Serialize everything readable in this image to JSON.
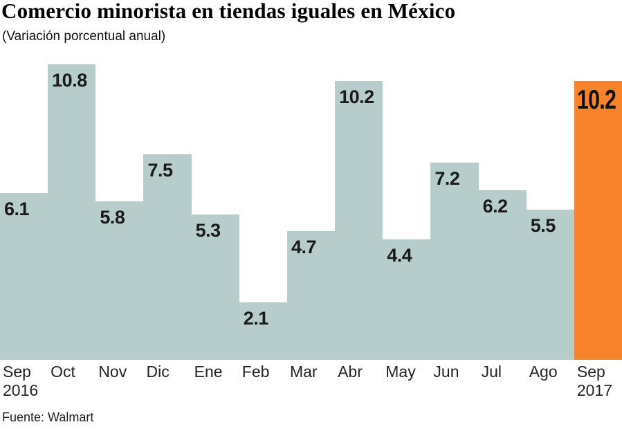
{
  "header": {
    "title": "Comercio minorista en tiendas iguales en México",
    "subtitle": "(Variación porcentual anual)"
  },
  "source": "Fuente: Walmart",
  "colors": {
    "bar": "#b6cdcc",
    "highlight": "#f7832b",
    "value_label": "#1a1a1a",
    "axis_text": "#242424"
  },
  "chart_data": {
    "type": "bar",
    "title": "Comercio minorista en tiendas iguales en México",
    "subtitle": "(Variación porcentual anual)",
    "categories": [
      "Sep\n2016",
      "Oct",
      "Nov",
      "Dic",
      "Ene",
      "Feb",
      "Mar",
      "Abr",
      "May",
      "Jun",
      "Jul",
      "Ago",
      "Sep\n2017"
    ],
    "values": [
      6.1,
      10.8,
      5.8,
      7.5,
      5.3,
      2.1,
      4.7,
      10.2,
      4.4,
      7.2,
      6.2,
      5.5,
      10.2
    ],
    "value_labels": [
      "6.1",
      "10.8",
      "5.8",
      "7.5",
      "5.3",
      "2.1",
      "4.7",
      "10.2",
      "4.4",
      "7.2",
      "6.2",
      "5.5",
      "10.2"
    ],
    "highlight_index": 12,
    "xlabel": "",
    "ylabel": "",
    "ylim": [
      0,
      10.8
    ],
    "grid": false,
    "legend_position": "none",
    "bar_style": "contiguous-steps",
    "source": "Fuente: Walmart"
  }
}
